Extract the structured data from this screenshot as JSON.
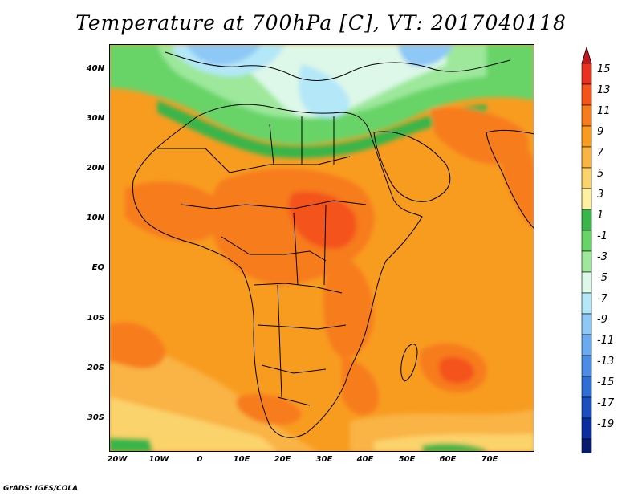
{
  "title": "Temperature at 700hPa [C], VT: 2017040118",
  "latitude_labels": [
    "40N",
    "30N",
    "20N",
    "10N",
    "EQ",
    "10S",
    "20S",
    "30S"
  ],
  "longitude_labels": [
    "20W",
    "10W",
    "0",
    "10E",
    "20E",
    "30E",
    "40E",
    "50E",
    "60E",
    "70E"
  ],
  "colorbar": {
    "labels": [
      "15",
      "13",
      "11",
      "9",
      "7",
      "5",
      "3",
      "1",
      "-1",
      "-3",
      "-5",
      "-7",
      "-9",
      "-11",
      "-13",
      "-15",
      "-17",
      "-19"
    ],
    "colors": [
      "#e8311e",
      "#f4531a",
      "#f77c1c",
      "#f89c20",
      "#f9b444",
      "#fbd36c",
      "#fdf0a0",
      "#39b54a",
      "#67d468",
      "#9de89b",
      "#ddf8e8",
      "#b4e7f8",
      "#8ec8f6",
      "#6aaaf0",
      "#4a8ce6",
      "#2e6fd6",
      "#1b4fc0",
      "#0a2ea0",
      "#071a6e"
    ],
    "top_arrow_color": "#c8141e",
    "bottom_arrow_color": "#e0dcf6"
  },
  "credit": "GrADS: IGES/COLA"
}
